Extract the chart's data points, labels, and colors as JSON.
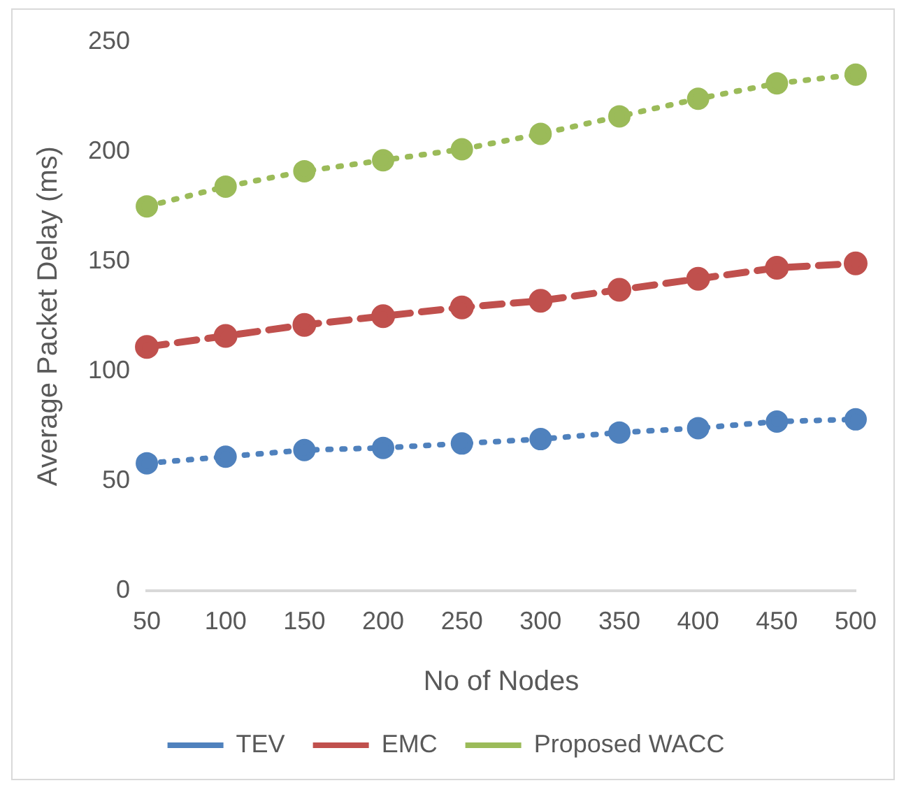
{
  "chart_data": {
    "type": "line",
    "xlabel": "No of Nodes",
    "ylabel": "Average Packet Delay (ms)",
    "categories": [
      "50",
      "100",
      "150",
      "200",
      "250",
      "300",
      "350",
      "400",
      "450",
      "500"
    ],
    "ylim": [
      0,
      250
    ],
    "yticks": [
      0,
      50,
      100,
      150,
      200,
      250
    ],
    "grid": false,
    "legend": "bottom",
    "marker": "circle",
    "series": [
      {
        "name": "TEV",
        "color": "#4f81bd",
        "line_style": "dotted",
        "values": [
          58,
          61,
          64,
          65,
          67,
          69,
          72,
          74,
          77,
          78
        ]
      },
      {
        "name": "EMC",
        "color": "#c0504d",
        "line_style": "dashed",
        "values": [
          111,
          116,
          121,
          125,
          129,
          132,
          137,
          142,
          147,
          149
        ]
      },
      {
        "name": "Proposed WACC",
        "color": "#9bbb59",
        "line_style": "dotted",
        "values": [
          175,
          184,
          191,
          196,
          201,
          208,
          216,
          224,
          231,
          235
        ]
      }
    ]
  }
}
